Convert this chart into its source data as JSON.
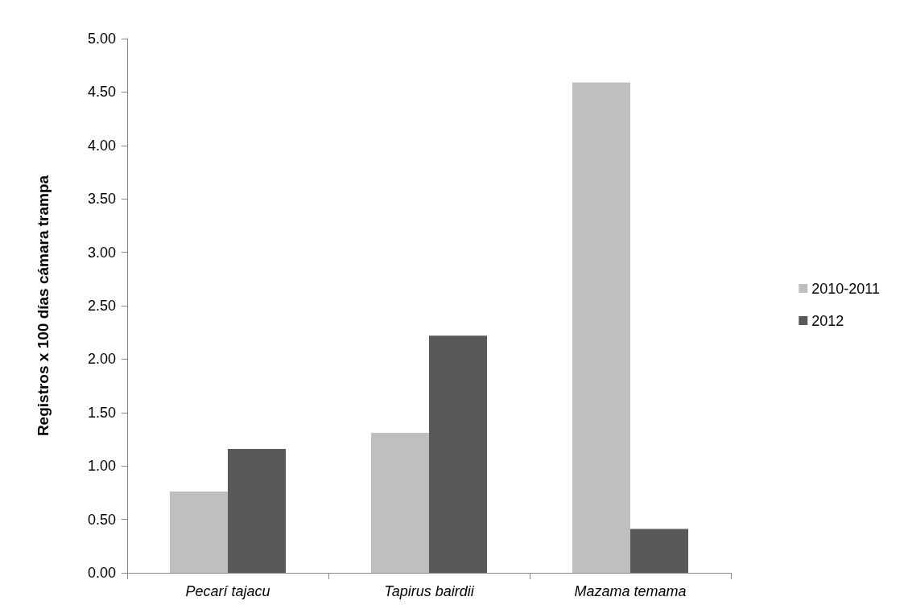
{
  "chart_data": {
    "type": "bar",
    "ylabel": "Registros x 100 días cámara trampa",
    "categories": [
      "Pecarí tajacu",
      "Tapirus bairdii",
      "Mazama temama"
    ],
    "series": [
      {
        "name": "2010-2011",
        "color": "#bfbfbf",
        "values": [
          0.76,
          1.31,
          4.59
        ]
      },
      {
        "name": "2012",
        "color": "#595959",
        "values": [
          1.16,
          2.22,
          0.41
        ]
      }
    ],
    "ylim": [
      0,
      5
    ],
    "yticks": [
      {
        "value": 0,
        "label": "0.00"
      },
      {
        "value": 0.5,
        "label": "0.50"
      },
      {
        "value": 1,
        "label": "1.00"
      },
      {
        "value": 1.5,
        "label": "1.50"
      },
      {
        "value": 2,
        "label": "2.00"
      },
      {
        "value": 2.5,
        "label": "2.50"
      },
      {
        "value": 3,
        "label": "3.00"
      },
      {
        "value": 3.5,
        "label": "3.50"
      },
      {
        "value": 4,
        "label": "4.00"
      },
      {
        "value": 4.5,
        "label": "4.50"
      },
      {
        "value": 5,
        "label": "5.00"
      }
    ],
    "grid": false,
    "legend": "right"
  }
}
